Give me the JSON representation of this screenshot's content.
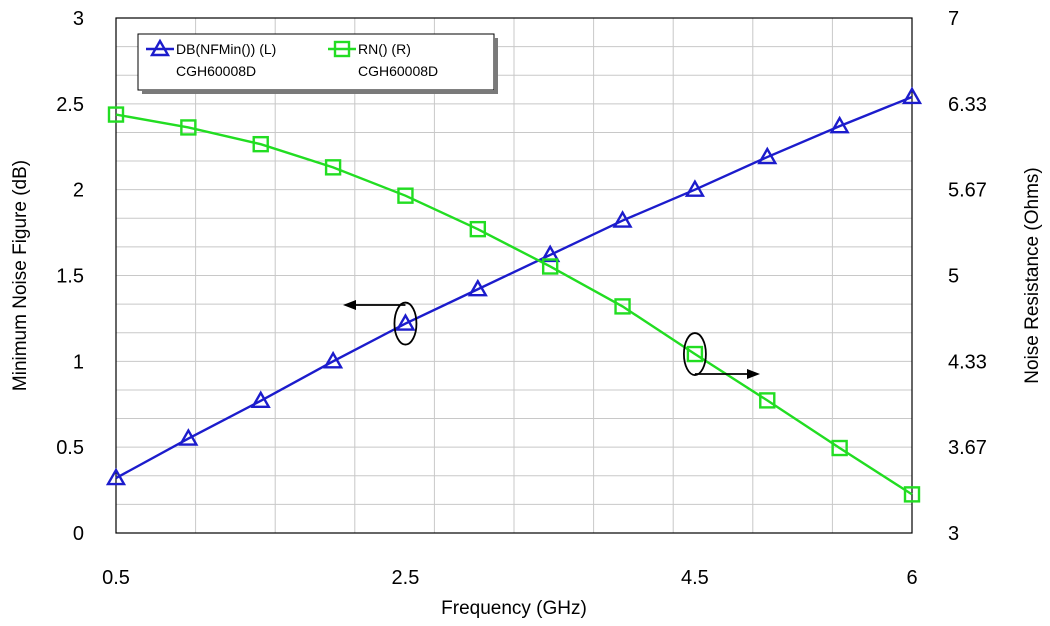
{
  "chart_data": {
    "type": "line",
    "title": "",
    "xlabel": "Frequency (GHz)",
    "ylabel_left": "Minimum Noise Figure (dB)",
    "ylabel_right": "Noise Resistance (Ohms)",
    "xlim": [
      0.5,
      6
    ],
    "ylim_left": [
      0,
      3
    ],
    "ylim_right": [
      3,
      7
    ],
    "x_ticks": [
      "0.5",
      "2.5",
      "4.5",
      "6"
    ],
    "x_tick_values": [
      0.5,
      2.5,
      4.5,
      6
    ],
    "y_left_ticks": [
      "0",
      "0.5",
      "1",
      "1.5",
      "2",
      "2.5",
      "3"
    ],
    "y_left_tick_values": [
      0,
      0.5,
      1,
      1.5,
      2,
      2.5,
      3
    ],
    "y_right_ticks": [
      "3",
      "3.67",
      "4.33",
      "5",
      "5.67",
      "6.33",
      "7"
    ],
    "y_right_tick_values": [
      3,
      3.667,
      4.333,
      5,
      5.667,
      6.333,
      7
    ],
    "grid": true,
    "legend_position": "top-left",
    "series": [
      {
        "name": "DB(NFMin()) (L)",
        "sublabel": "CGH60008D",
        "axis": "left",
        "color": "#1c1ccc",
        "marker": "triangle",
        "x": [
          0.5,
          1.0,
          1.5,
          2.0,
          2.5,
          3.0,
          3.5,
          4.0,
          4.5,
          5.0,
          5.5,
          6.0
        ],
        "y": [
          0.32,
          0.55,
          0.77,
          1.0,
          1.22,
          1.42,
          1.62,
          1.82,
          2.0,
          2.19,
          2.37,
          2.54
        ]
      },
      {
        "name": "RN() (R)",
        "sublabel": "CGH60008D",
        "axis": "right",
        "color": "#22dd22",
        "marker": "square",
        "x": [
          0.5,
          1.0,
          1.5,
          2.0,
          2.5,
          3.0,
          3.5,
          4.0,
          4.5,
          5.0,
          5.5,
          6.0
        ],
        "y": [
          6.25,
          6.15,
          6.02,
          5.84,
          5.62,
          5.36,
          5.07,
          4.76,
          4.39,
          4.03,
          3.66,
          3.3
        ]
      }
    ]
  }
}
